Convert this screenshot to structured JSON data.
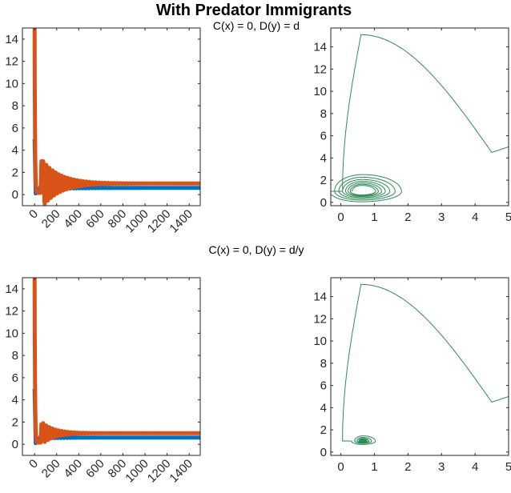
{
  "figure": {
    "title": "With Predator Immigrants",
    "subtitles": [
      "C(x) = 0, D(y) = d",
      "C(x) = 0, D(y) = d/y"
    ]
  },
  "colors": {
    "prey": "#0072BD",
    "predator": "#D95319",
    "phase": "#2E8B57"
  },
  "chart_data": [
    {
      "type": "line",
      "title": "C(x) = 0, D(y) = d",
      "xlim": [
        -110,
        1500
      ],
      "ylim": [
        -1,
        15
      ],
      "xticks": [
        0,
        200,
        400,
        600,
        800,
        1000,
        1200,
        1400
      ],
      "yticks": [
        0,
        2,
        4,
        6,
        8,
        10,
        12,
        14
      ],
      "series": [
        {
          "color": "#0072BD",
          "start": 5,
          "steady": 0.6,
          "amplitude": 0.15,
          "period": 28,
          "decay": 250,
          "x": [
            0,
            1500
          ]
        },
        {
          "color": "#D95319",
          "start": 16,
          "steady": 1.0,
          "firstPeak": 3.0,
          "firstPeakX": 78,
          "amplitude": 2.0,
          "period": 28,
          "decay": 160,
          "x": [
            0,
            1500
          ]
        }
      ]
    },
    {
      "type": "line",
      "title": "",
      "xlim": [
        -0.3,
        5
      ],
      "ylim": [
        -0.3,
        15.7
      ],
      "xticks": [
        0,
        1,
        2,
        3,
        4,
        5
      ],
      "yticks": [
        0,
        2,
        4,
        6,
        8,
        10,
        12,
        14
      ],
      "series": [
        {
          "color": "#2E8B57",
          "start": [
            5,
            5
          ],
          "peak": [
            0.6,
            15.1
          ],
          "equilibrium": [
            0.62,
            1.0
          ],
          "firstLoop": 2.0,
          "decay": 0.84
        }
      ]
    },
    {
      "type": "line",
      "title": "C(x) = 0, D(y) = d/y",
      "xlim": [
        -110,
        1500
      ],
      "ylim": [
        -1,
        15
      ],
      "xticks": [
        0,
        200,
        400,
        600,
        800,
        1000,
        1200,
        1400
      ],
      "yticks": [
        0,
        2,
        4,
        6,
        8,
        10,
        12,
        14
      ],
      "series": [
        {
          "color": "#0072BD",
          "start": 5,
          "steady": 0.6,
          "amplitude": 0.1,
          "period": 28,
          "decay": 160,
          "x": [
            0,
            1500
          ]
        },
        {
          "color": "#D95319",
          "start": 16,
          "steady": 1.0,
          "firstPeak": 1.8,
          "firstPeakX": 78,
          "amplitude": 0.9,
          "period": 28,
          "decay": 110,
          "x": [
            0,
            1500
          ]
        }
      ]
    },
    {
      "type": "line",
      "title": "",
      "xlim": [
        -0.3,
        5
      ],
      "ylim": [
        -0.3,
        15.7
      ],
      "xticks": [
        0,
        1,
        2,
        3,
        4,
        5
      ],
      "yticks": [
        0,
        2,
        4,
        6,
        8,
        10,
        12,
        14
      ],
      "series": [
        {
          "color": "#2E8B57",
          "start": [
            5,
            5
          ],
          "peak": [
            0.6,
            15.1
          ],
          "equilibrium": [
            0.65,
            1.0
          ],
          "firstLoop": 0.7,
          "decay": 0.7
        }
      ]
    }
  ]
}
